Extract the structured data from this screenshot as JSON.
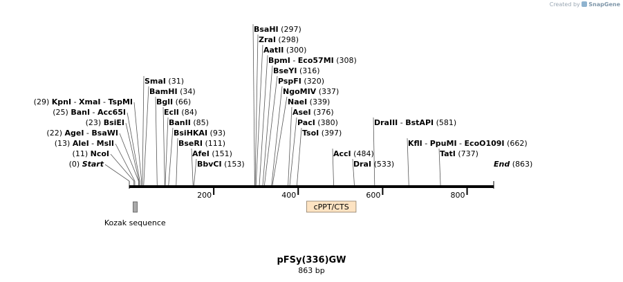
{
  "credit": {
    "created_by": "Created by",
    "brand": "SnapGene"
  },
  "plasmid": {
    "name": "pFSy(336)GW",
    "length_label": "863 bp",
    "length_bp": 863
  },
  "ruler": {
    "ticks": [
      200,
      400,
      600,
      800
    ]
  },
  "sites": [
    {
      "id": "start",
      "bp": 0,
      "items": [
        "Start"
      ],
      "pos": "(0)",
      "side": "left",
      "italic": true
    },
    {
      "id": "ncoi",
      "bp": 11,
      "items": [
        "NcoI"
      ],
      "pos": "(11)",
      "side": "left"
    },
    {
      "id": "alei",
      "bp": 13,
      "items": [
        "AleI",
        "MslI"
      ],
      "pos": "(13)",
      "side": "left"
    },
    {
      "id": "agei",
      "bp": 22,
      "items": [
        "AgeI",
        "BsaWI"
      ],
      "pos": "(22)",
      "side": "left"
    },
    {
      "id": "bsiei",
      "bp": 23,
      "items": [
        "BsiEI"
      ],
      "pos": "(23)",
      "side": "left"
    },
    {
      "id": "bani",
      "bp": 25,
      "items": [
        "BanI",
        "Acc65I"
      ],
      "pos": "(25)",
      "side": "left"
    },
    {
      "id": "kpni",
      "bp": 29,
      "items": [
        "KpnI",
        "XmaI",
        "TspMI"
      ],
      "pos": "(29)",
      "side": "left"
    },
    {
      "id": "smai",
      "bp": 31,
      "items": [
        "SmaI"
      ],
      "pos": "(31)",
      "side": "right"
    },
    {
      "id": "bamhi",
      "bp": 34,
      "items": [
        "BamHI"
      ],
      "pos": "(34)",
      "side": "right"
    },
    {
      "id": "bgli",
      "bp": 66,
      "items": [
        "BglI"
      ],
      "pos": "(66)",
      "side": "right"
    },
    {
      "id": "ecli",
      "bp": 84,
      "items": [
        "EclI"
      ],
      "pos": "(84)",
      "side": "right"
    },
    {
      "id": "banii",
      "bp": 85,
      "items": [
        "BanII"
      ],
      "pos": "(85)",
      "side": "right"
    },
    {
      "id": "bsihkai",
      "bp": 93,
      "items": [
        "BsiHKAI"
      ],
      "pos": "(93)",
      "side": "right"
    },
    {
      "id": "bseri",
      "bp": 111,
      "items": [
        "BseRI"
      ],
      "pos": "(111)",
      "side": "right"
    },
    {
      "id": "afei",
      "bp": 151,
      "items": [
        "AfeI"
      ],
      "pos": "(151)",
      "side": "right"
    },
    {
      "id": "bbvci",
      "bp": 153,
      "items": [
        "BbvCI"
      ],
      "pos": "(153)",
      "side": "right"
    },
    {
      "id": "bsahi",
      "bp": 297,
      "items": [
        "BsaHI"
      ],
      "pos": "(297)",
      "side": "right"
    },
    {
      "id": "zrai",
      "bp": 298,
      "items": [
        "ZraI"
      ],
      "pos": "(298)",
      "side": "right"
    },
    {
      "id": "aatii",
      "bp": 300,
      "items": [
        "AatII"
      ],
      "pos": "(300)",
      "side": "right"
    },
    {
      "id": "bpmi",
      "bp": 308,
      "items": [
        "BpmI",
        "Eco57MI"
      ],
      "pos": "(308)",
      "side": "right"
    },
    {
      "id": "bseyi",
      "bp": 316,
      "items": [
        "BseYI"
      ],
      "pos": "(316)",
      "side": "right"
    },
    {
      "id": "pspfi",
      "bp": 320,
      "items": [
        "PspFI"
      ],
      "pos": "(320)",
      "side": "right"
    },
    {
      "id": "ngomiv",
      "bp": 337,
      "items": [
        "NgoMIV"
      ],
      "pos": "(337)",
      "side": "right"
    },
    {
      "id": "naei",
      "bp": 339,
      "items": [
        "NaeI"
      ],
      "pos": "(339)",
      "side": "right"
    },
    {
      "id": "asei",
      "bp": 376,
      "items": [
        "AseI"
      ],
      "pos": "(376)",
      "side": "right"
    },
    {
      "id": "paci",
      "bp": 380,
      "items": [
        "PacI"
      ],
      "pos": "(380)",
      "side": "right"
    },
    {
      "id": "tsoi",
      "bp": 397,
      "items": [
        "TsoI"
      ],
      "pos": "(397)",
      "side": "right"
    },
    {
      "id": "acci",
      "bp": 484,
      "items": [
        "AccI"
      ],
      "pos": "(484)",
      "side": "right"
    },
    {
      "id": "drai",
      "bp": 533,
      "items": [
        "DraI"
      ],
      "pos": "(533)",
      "side": "right"
    },
    {
      "id": "draiii",
      "bp": 581,
      "items": [
        "DraIII",
        "BstAPI"
      ],
      "pos": "(581)",
      "side": "right"
    },
    {
      "id": "kfli",
      "bp": 662,
      "items": [
        "KflI",
        "PpuMI",
        "EcoO109I"
      ],
      "pos": "(662)",
      "side": "right"
    },
    {
      "id": "tati",
      "bp": 737,
      "items": [
        "TatI"
      ],
      "pos": "(737)",
      "side": "right"
    },
    {
      "id": "end",
      "bp": 863,
      "items": [
        "End"
      ],
      "pos": "(863)",
      "side": "right",
      "italic": true
    }
  ],
  "features": [
    {
      "id": "kozak",
      "label": "Kozak sequence",
      "start": 9,
      "end": 18,
      "color": "#a9a9a9",
      "label_position": "below"
    },
    {
      "id": "cppt",
      "label": "cPPT/CTS",
      "start": 420,
      "end": 537,
      "color": "#fde3c2",
      "label_position": "inside"
    }
  ]
}
